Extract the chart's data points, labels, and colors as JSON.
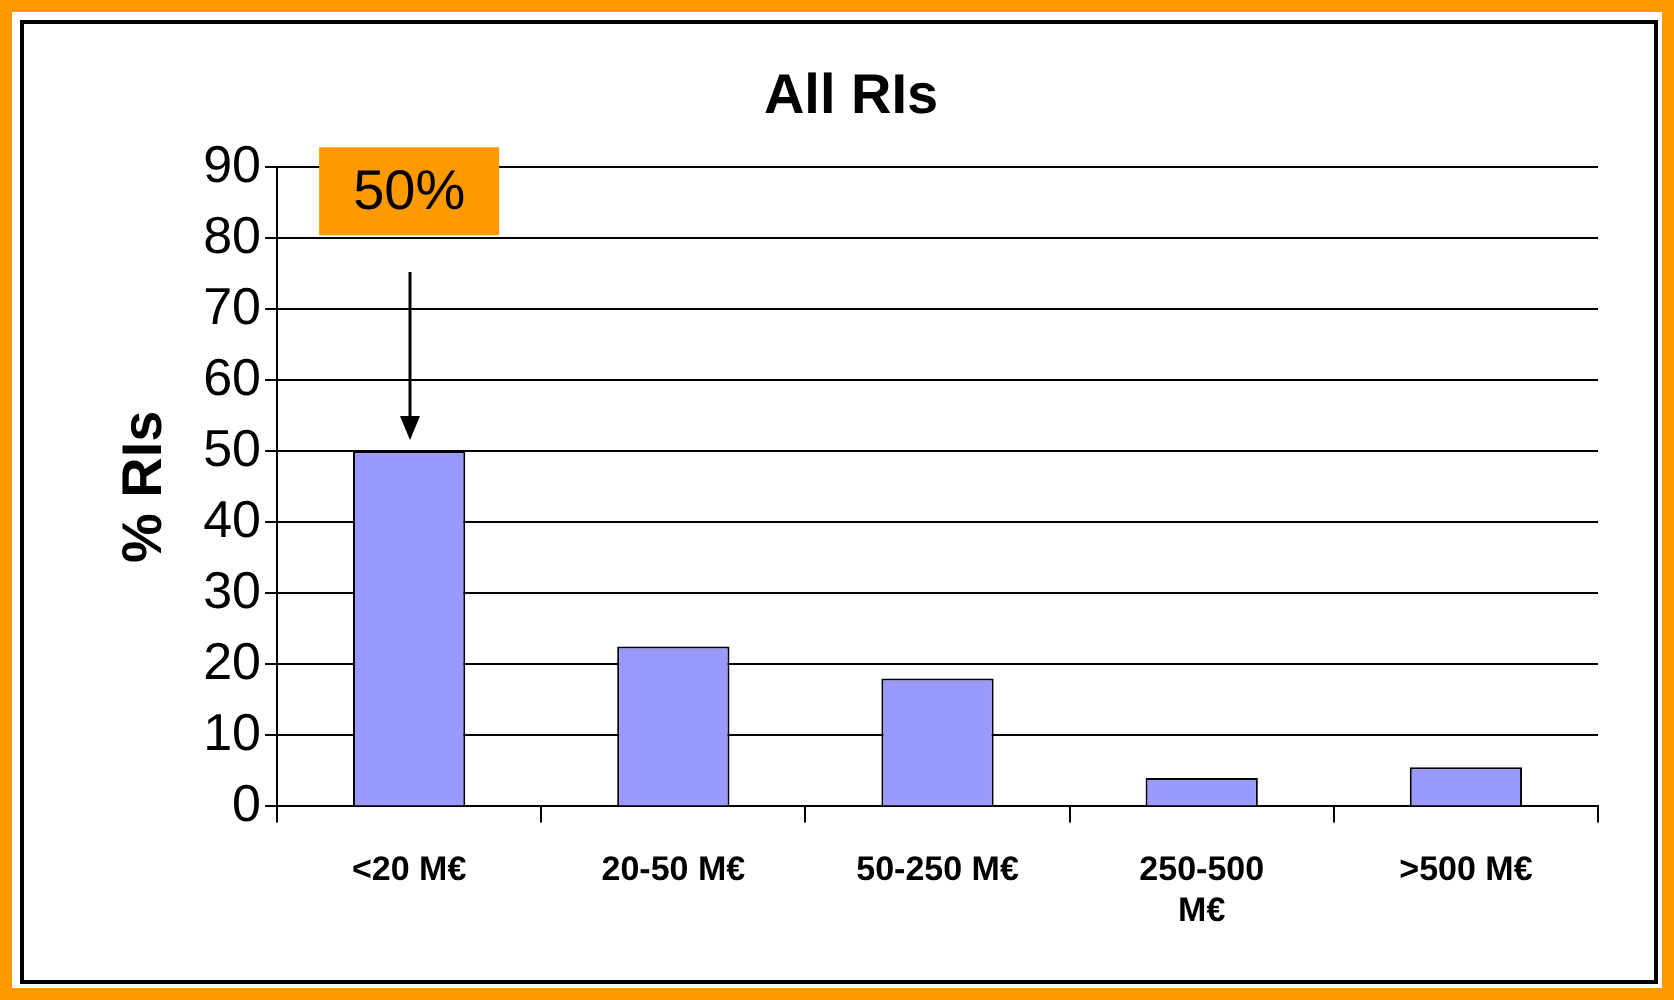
{
  "chart_data": {
    "type": "bar",
    "title": "All RIs",
    "ylabel": "% RIs",
    "categories": [
      "<20 M€",
      "20-50 M€",
      "50-250 M€",
      "250-500 M€",
      ">500 M€"
    ],
    "values": [
      50,
      22.5,
      18,
      4,
      5.5
    ],
    "color": "#9999ff",
    "ylim": [
      0,
      90
    ],
    "yticks": [
      0,
      10,
      20,
      30,
      40,
      50,
      60,
      70,
      80,
      90
    ],
    "grid": "y",
    "annotations": [
      "50%"
    ]
  }
}
